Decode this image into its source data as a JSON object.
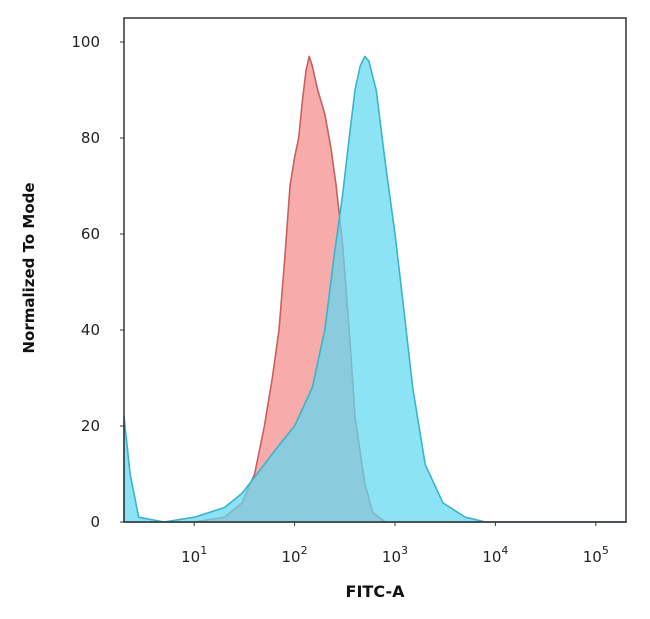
{
  "chart_data": {
    "type": "area",
    "title": "",
    "xlabel": "FITC-A",
    "ylabel": "Normalized To Mode",
    "xscale": "log",
    "xlim": [
      2,
      200000
    ],
    "ylim": [
      0,
      105
    ],
    "grid": false,
    "legend": "none",
    "x_ticks": [
      {
        "value": 10,
        "base": "10",
        "exp": "1"
      },
      {
        "value": 100,
        "base": "10",
        "exp": "2"
      },
      {
        "value": 1000,
        "base": "10",
        "exp": "3"
      },
      {
        "value": 10000,
        "base": "10",
        "exp": "4"
      },
      {
        "value": 100000,
        "base": "10",
        "exp": "5"
      }
    ],
    "y_ticks": [
      "0",
      "20",
      "40",
      "60",
      "80",
      "100"
    ],
    "series": [
      {
        "color": "#f48a8a",
        "stroke": "#c86060",
        "points": [
          [
            2,
            0
          ],
          [
            10,
            0
          ],
          [
            20,
            1
          ],
          [
            30,
            4
          ],
          [
            40,
            10
          ],
          [
            50,
            20
          ],
          [
            60,
            30
          ],
          [
            70,
            40
          ],
          [
            80,
            55
          ],
          [
            90,
            70
          ],
          [
            100,
            76
          ],
          [
            110,
            80
          ],
          [
            120,
            88
          ],
          [
            130,
            94
          ],
          [
            140,
            97
          ],
          [
            150,
            95
          ],
          [
            170,
            90
          ],
          [
            200,
            85
          ],
          [
            230,
            78
          ],
          [
            260,
            70
          ],
          [
            300,
            58
          ],
          [
            350,
            40
          ],
          [
            400,
            22
          ],
          [
            500,
            8
          ],
          [
            600,
            2
          ],
          [
            800,
            0
          ],
          [
            200000,
            0
          ]
        ]
      },
      {
        "color": "#5fd8f0",
        "stroke": "#3ab4cc",
        "points": [
          [
            2,
            22
          ],
          [
            2.3,
            10
          ],
          [
            2.8,
            1
          ],
          [
            5,
            0
          ],
          [
            10,
            1
          ],
          [
            20,
            3
          ],
          [
            30,
            6
          ],
          [
            50,
            12
          ],
          [
            70,
            16
          ],
          [
            100,
            20
          ],
          [
            150,
            28
          ],
          [
            200,
            40
          ],
          [
            250,
            56
          ],
          [
            300,
            68
          ],
          [
            350,
            80
          ],
          [
            400,
            90
          ],
          [
            450,
            95
          ],
          [
            500,
            97
          ],
          [
            550,
            96
          ],
          [
            650,
            90
          ],
          [
            800,
            75
          ],
          [
            1000,
            60
          ],
          [
            1200,
            46
          ],
          [
            1500,
            28
          ],
          [
            2000,
            12
          ],
          [
            3000,
            4
          ],
          [
            5000,
            1
          ],
          [
            8000,
            0
          ],
          [
            200000,
            0
          ]
        ]
      }
    ]
  }
}
